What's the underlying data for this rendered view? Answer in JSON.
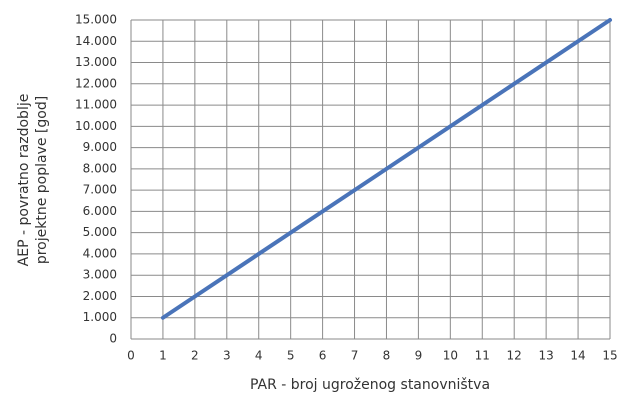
{
  "chart_data": {
    "type": "line",
    "xlabel": "PAR - broj ugroženog stanovništva",
    "ylabel": [
      "AEP - povratno razdoblje",
      "projektne poplave [god]"
    ],
    "x": [
      1,
      15
    ],
    "series": [
      {
        "color": "#4a74b9",
        "values": [
          1000,
          15000
        ]
      }
    ],
    "xlim": [
      0,
      15
    ],
    "xticks": [
      0,
      1,
      2,
      3,
      4,
      5,
      6,
      7,
      8,
      9,
      10,
      11,
      12,
      13,
      14,
      15
    ],
    "ylim": [
      0,
      15000
    ],
    "yticks": [
      0,
      {
        "value": 1000,
        "label": "1.000"
      },
      {
        "value": 2000,
        "label": "2.000"
      },
      {
        "value": 3000,
        "label": "3.000"
      },
      {
        "value": 4000,
        "label": "4.000"
      },
      {
        "value": 5000,
        "label": "5.000"
      },
      {
        "value": 6000,
        "label": "6.000"
      },
      {
        "value": 7000,
        "label": "7.000"
      },
      {
        "value": 8000,
        "label": "8.000"
      },
      {
        "value": 9000,
        "label": "9.000"
      },
      {
        "value": 10000,
        "label": "10.000"
      },
      {
        "value": 11000,
        "label": "11.000"
      },
      {
        "value": 12000,
        "label": "12.000"
      },
      {
        "value": 13000,
        "label": "13.000"
      },
      {
        "value": 14000,
        "label": "14.000"
      },
      {
        "value": 15000,
        "label": "15.000"
      }
    ],
    "grid": true
  }
}
